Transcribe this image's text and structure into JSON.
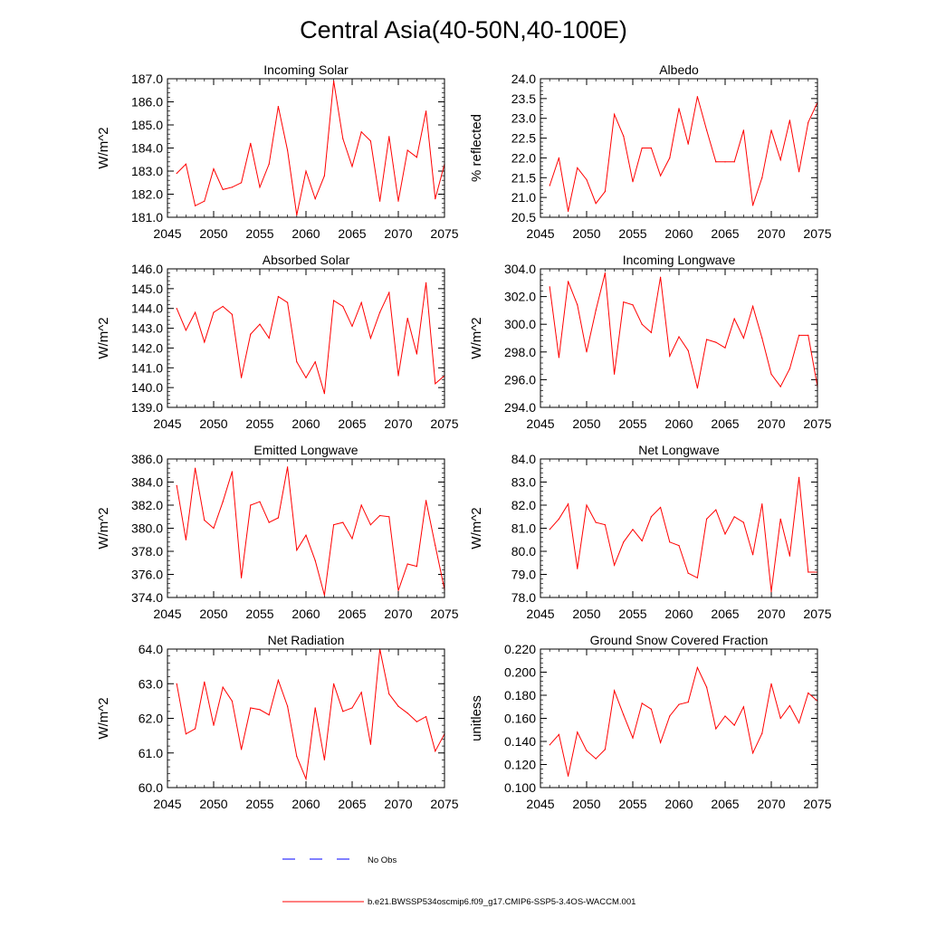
{
  "title": "Central Asia(40-50N,40-100E)",
  "colors": {
    "model": "#ff0000",
    "obs": "#0000ff",
    "axis": "#000000"
  },
  "legend": {
    "obs_label": "No Obs",
    "model_label": "b.e21.BWSSP534oscmip6.f09_g17.CMIP6-SSP5-3.4OS-WACCM.001"
  },
  "chart_data": [
    {
      "type": "line",
      "title": "Incoming Solar",
      "ylabel": "W/m^2",
      "xlim": [
        2045,
        2075
      ],
      "ylim": [
        181.0,
        187.0
      ],
      "xticks": [
        2045,
        2050,
        2055,
        2060,
        2065,
        2070,
        2075
      ],
      "xtick_labels": [
        "2045",
        "2050",
        "2055",
        "2060",
        "2065",
        "2070",
        "2075"
      ],
      "yticks": [
        181,
        182,
        183,
        184,
        185,
        186,
        187
      ],
      "ytick_labels": [
        "181.0",
        "182.0",
        "183.0",
        "184.0",
        "185.0",
        "186.0",
        "187.0"
      ],
      "x": [
        2046,
        2047,
        2048,
        2049,
        2050,
        2051,
        2052,
        2053,
        2054,
        2055,
        2056,
        2057,
        2058,
        2059,
        2060,
        2061,
        2062,
        2063,
        2064,
        2065,
        2066,
        2067,
        2068,
        2069,
        2070,
        2071,
        2072,
        2073,
        2074,
        2075
      ],
      "y": [
        182.9,
        183.3,
        181.5,
        181.7,
        183.1,
        182.2,
        182.3,
        182.5,
        184.2,
        182.3,
        183.3,
        185.8,
        183.9,
        181.1,
        183.0,
        181.8,
        182.8,
        186.9,
        184.4,
        183.2,
        184.7,
        184.3,
        181.7,
        184.5,
        181.7,
        183.9,
        183.6,
        185.6,
        181.8,
        183.3
      ],
      "series": [
        {
          "name": "b.e21.BWSSP534oscmip6.f09_g17.CMIP6-SSP5-3.4OS-WACCM.001"
        }
      ]
    },
    {
      "type": "line",
      "title": "Albedo",
      "ylabel": "% reflected",
      "xlim": [
        2045,
        2075
      ],
      "ylim": [
        20.5,
        24.0
      ],
      "xticks": [
        2045,
        2050,
        2055,
        2060,
        2065,
        2070,
        2075
      ],
      "xtick_labels": [
        "2045",
        "2050",
        "2055",
        "2060",
        "2065",
        "2070",
        "2075"
      ],
      "yticks": [
        20.5,
        21.0,
        21.5,
        22.0,
        22.5,
        23.0,
        23.5,
        24.0
      ],
      "ytick_labels": [
        "20.5",
        "21.0",
        "21.5",
        "22.0",
        "22.5",
        "23.0",
        "23.5",
        "24.0"
      ],
      "x": [
        2046,
        2047,
        2048,
        2049,
        2050,
        2051,
        2052,
        2053,
        2054,
        2055,
        2056,
        2057,
        2058,
        2059,
        2060,
        2061,
        2062,
        2063,
        2064,
        2065,
        2066,
        2067,
        2068,
        2069,
        2070,
        2071,
        2072,
        2073,
        2074,
        2075
      ],
      "y": [
        21.3,
        22.0,
        20.65,
        21.75,
        21.45,
        20.85,
        21.15,
        23.1,
        22.55,
        21.4,
        22.25,
        22.25,
        21.55,
        22.0,
        23.25,
        22.35,
        23.55,
        22.7,
        21.9,
        21.9,
        21.9,
        22.7,
        20.8,
        21.5,
        22.7,
        21.95,
        22.95,
        21.65,
        22.9,
        23.4
      ],
      "series": [
        {
          "name": "b.e21.BWSSP534oscmip6.f09_g17.CMIP6-SSP5-3.4OS-WACCM.001"
        }
      ]
    },
    {
      "type": "line",
      "title": "Absorbed Solar",
      "ylabel": "W/m^2",
      "xlim": [
        2045,
        2075
      ],
      "ylim": [
        139.0,
        146.0
      ],
      "xticks": [
        2045,
        2050,
        2055,
        2060,
        2065,
        2070,
        2075
      ],
      "xtick_labels": [
        "2045",
        "2050",
        "2055",
        "2060",
        "2065",
        "2070",
        "2075"
      ],
      "yticks": [
        139,
        140,
        141,
        142,
        143,
        144,
        145,
        146
      ],
      "ytick_labels": [
        "139.0",
        "140.0",
        "141.0",
        "142.0",
        "143.0",
        "144.0",
        "145.0",
        "146.0"
      ],
      "x": [
        2046,
        2047,
        2048,
        2049,
        2050,
        2051,
        2052,
        2053,
        2054,
        2055,
        2056,
        2057,
        2058,
        2059,
        2060,
        2061,
        2062,
        2063,
        2064,
        2065,
        2066,
        2067,
        2068,
        2069,
        2070,
        2071,
        2072,
        2073,
        2074,
        2075
      ],
      "y": [
        144.0,
        142.9,
        143.8,
        142.3,
        143.8,
        144.1,
        143.7,
        140.5,
        142.7,
        143.2,
        142.5,
        144.6,
        144.3,
        141.3,
        140.5,
        141.3,
        139.7,
        144.4,
        144.1,
        143.1,
        144.3,
        142.5,
        143.8,
        144.8,
        140.6,
        143.5,
        141.7,
        145.3,
        140.2,
        140.6
      ],
      "series": [
        {
          "name": "b.e21.BWSSP534oscmip6.f09_g17.CMIP6-SSP5-3.4OS-WACCM.001"
        }
      ]
    },
    {
      "type": "line",
      "title": "Incoming Longwave",
      "ylabel": "W/m^2",
      "xlim": [
        2045,
        2075
      ],
      "ylim": [
        294.0,
        304.0
      ],
      "xticks": [
        2045,
        2050,
        2055,
        2060,
        2065,
        2070,
        2075
      ],
      "xtick_labels": [
        "2045",
        "2050",
        "2055",
        "2060",
        "2065",
        "2070",
        "2075"
      ],
      "yticks": [
        294,
        296,
        298,
        300,
        302,
        304
      ],
      "ytick_labels": [
        "294.0",
        "296.0",
        "298.0",
        "300.0",
        "302.0",
        "304.0"
      ],
      "x": [
        2046,
        2047,
        2048,
        2049,
        2050,
        2051,
        2052,
        2053,
        2054,
        2055,
        2056,
        2057,
        2058,
        2059,
        2060,
        2061,
        2062,
        2063,
        2064,
        2065,
        2066,
        2067,
        2068,
        2069,
        2070,
        2071,
        2072,
        2073,
        2074,
        2075
      ],
      "y": [
        302.7,
        297.6,
        303.1,
        301.4,
        298.0,
        301.0,
        303.7,
        296.4,
        301.6,
        301.4,
        300.0,
        299.4,
        303.4,
        297.7,
        299.1,
        298.1,
        295.4,
        298.9,
        298.7,
        298.3,
        300.4,
        299.0,
        301.3,
        299.0,
        296.4,
        295.5,
        296.8,
        299.2,
        299.2,
        295.5
      ],
      "series": [
        {
          "name": "b.e21.BWSSP534oscmip6.f09_g17.CMIP6-SSP5-3.4OS-WACCM.001"
        }
      ]
    },
    {
      "type": "line",
      "title": "Emitted Longwave",
      "ylabel": "W/m^2",
      "xlim": [
        2045,
        2075
      ],
      "ylim": [
        374.0,
        386.0
      ],
      "xticks": [
        2045,
        2050,
        2055,
        2060,
        2065,
        2070,
        2075
      ],
      "xtick_labels": [
        "2045",
        "2050",
        "2055",
        "2060",
        "2065",
        "2070",
        "2075"
      ],
      "yticks": [
        374,
        376,
        378,
        380,
        382,
        384,
        386
      ],
      "ytick_labels": [
        "374.0",
        "376.0",
        "378.0",
        "380.0",
        "382.0",
        "384.0",
        "386.0"
      ],
      "x": [
        2046,
        2047,
        2048,
        2049,
        2050,
        2051,
        2052,
        2053,
        2054,
        2055,
        2056,
        2057,
        2058,
        2059,
        2060,
        2061,
        2062,
        2063,
        2064,
        2065,
        2066,
        2067,
        2068,
        2069,
        2070,
        2071,
        2072,
        2073,
        2074,
        2075
      ],
      "y": [
        383.7,
        379.0,
        385.2,
        380.7,
        380.0,
        382.3,
        384.9,
        375.7,
        382.0,
        382.3,
        380.5,
        380.9,
        385.3,
        378.1,
        379.4,
        377.2,
        374.2,
        380.3,
        380.5,
        379.1,
        382.0,
        380.3,
        381.1,
        381.0,
        374.6,
        376.9,
        376.7,
        382.4,
        378.5,
        374.7
      ],
      "series": [
        {
          "name": "b.e21.BWSSP534oscmip6.f09_g17.CMIP6-SSP5-3.4OS-WACCM.001"
        }
      ]
    },
    {
      "type": "line",
      "title": "Net Longwave",
      "ylabel": "W/m^2",
      "xlim": [
        2045,
        2075
      ],
      "ylim": [
        78.0,
        84.0
      ],
      "xticks": [
        2045,
        2050,
        2055,
        2060,
        2065,
        2070,
        2075
      ],
      "xtick_labels": [
        "2045",
        "2050",
        "2055",
        "2060",
        "2065",
        "2070",
        "2075"
      ],
      "yticks": [
        78,
        79,
        80,
        81,
        82,
        83,
        84
      ],
      "ytick_labels": [
        "78.0",
        "79.0",
        "80.0",
        "81.0",
        "82.0",
        "83.0",
        "84.0"
      ],
      "x": [
        2046,
        2047,
        2048,
        2049,
        2050,
        2051,
        2052,
        2053,
        2054,
        2055,
        2056,
        2057,
        2058,
        2059,
        2060,
        2061,
        2062,
        2063,
        2064,
        2065,
        2066,
        2067,
        2068,
        2069,
        2070,
        2071,
        2072,
        2073,
        2074,
        2075
      ],
      "y": [
        80.95,
        81.4,
        82.05,
        79.25,
        82.0,
        81.25,
        81.15,
        79.4,
        80.4,
        80.95,
        80.45,
        81.5,
        81.9,
        80.4,
        80.25,
        79.05,
        78.85,
        81.4,
        81.8,
        80.75,
        81.5,
        81.25,
        79.85,
        82.05,
        78.25,
        81.4,
        79.8,
        83.2,
        79.1,
        79.1
      ],
      "series": [
        {
          "name": "b.e21.BWSSP534oscmip6.f09_g17.CMIP6-SSP5-3.4OS-WACCM.001"
        }
      ]
    },
    {
      "type": "line",
      "title": "Net Radiation",
      "ylabel": "W/m^2",
      "xlim": [
        2045,
        2075
      ],
      "ylim": [
        60.0,
        64.0
      ],
      "xticks": [
        2045,
        2050,
        2055,
        2060,
        2065,
        2070,
        2075
      ],
      "xtick_labels": [
        "2045",
        "2050",
        "2055",
        "2060",
        "2065",
        "2070",
        "2075"
      ],
      "yticks": [
        60,
        61,
        62,
        63,
        64
      ],
      "ytick_labels": [
        "60.0",
        "61.0",
        "62.0",
        "63.0",
        "64.0"
      ],
      "x": [
        2046,
        2047,
        2048,
        2049,
        2050,
        2051,
        2052,
        2053,
        2054,
        2055,
        2056,
        2057,
        2058,
        2059,
        2060,
        2061,
        2062,
        2063,
        2064,
        2065,
        2066,
        2067,
        2068,
        2069,
        2070,
        2071,
        2072,
        2073,
        2074,
        2075
      ],
      "y": [
        63.0,
        61.55,
        61.7,
        63.05,
        61.8,
        62.9,
        62.5,
        61.1,
        62.3,
        62.25,
        62.1,
        63.1,
        62.35,
        60.9,
        60.25,
        62.3,
        60.8,
        63.0,
        62.2,
        62.3,
        62.75,
        61.25,
        64.0,
        62.7,
        62.35,
        62.15,
        61.9,
        62.05,
        61.05,
        61.55
      ],
      "series": [
        {
          "name": "b.e21.BWSSP534oscmip6.f09_g17.CMIP6-SSP5-3.4OS-WACCM.001"
        }
      ]
    },
    {
      "type": "line",
      "title": "Ground Snow Covered Fraction",
      "ylabel": "unitless",
      "xlim": [
        2045,
        2075
      ],
      "ylim": [
        0.1,
        0.22
      ],
      "xticks": [
        2045,
        2050,
        2055,
        2060,
        2065,
        2070,
        2075
      ],
      "xtick_labels": [
        "2045",
        "2050",
        "2055",
        "2060",
        "2065",
        "2070",
        "2075"
      ],
      "yticks": [
        0.1,
        0.12,
        0.14,
        0.16,
        0.18,
        0.2,
        0.22
      ],
      "ytick_labels": [
        "0.100",
        "0.120",
        "0.140",
        "0.160",
        "0.180",
        "0.200",
        "0.220"
      ],
      "x": [
        2046,
        2047,
        2048,
        2049,
        2050,
        2051,
        2052,
        2053,
        2054,
        2055,
        2056,
        2057,
        2058,
        2059,
        2060,
        2061,
        2062,
        2063,
        2064,
        2065,
        2066,
        2067,
        2068,
        2069,
        2070,
        2071,
        2072,
        2073,
        2074,
        2075
      ],
      "y": [
        0.137,
        0.146,
        0.11,
        0.148,
        0.132,
        0.125,
        0.133,
        0.184,
        0.163,
        0.143,
        0.173,
        0.168,
        0.139,
        0.162,
        0.172,
        0.174,
        0.204,
        0.187,
        0.151,
        0.162,
        0.154,
        0.17,
        0.13,
        0.147,
        0.19,
        0.16,
        0.171,
        0.156,
        0.182,
        0.175
      ],
      "series": [
        {
          "name": "b.e21.BWSSP534oscmip6.f09_g17.CMIP6-SSP5-3.4OS-WACCM.001"
        }
      ]
    }
  ]
}
